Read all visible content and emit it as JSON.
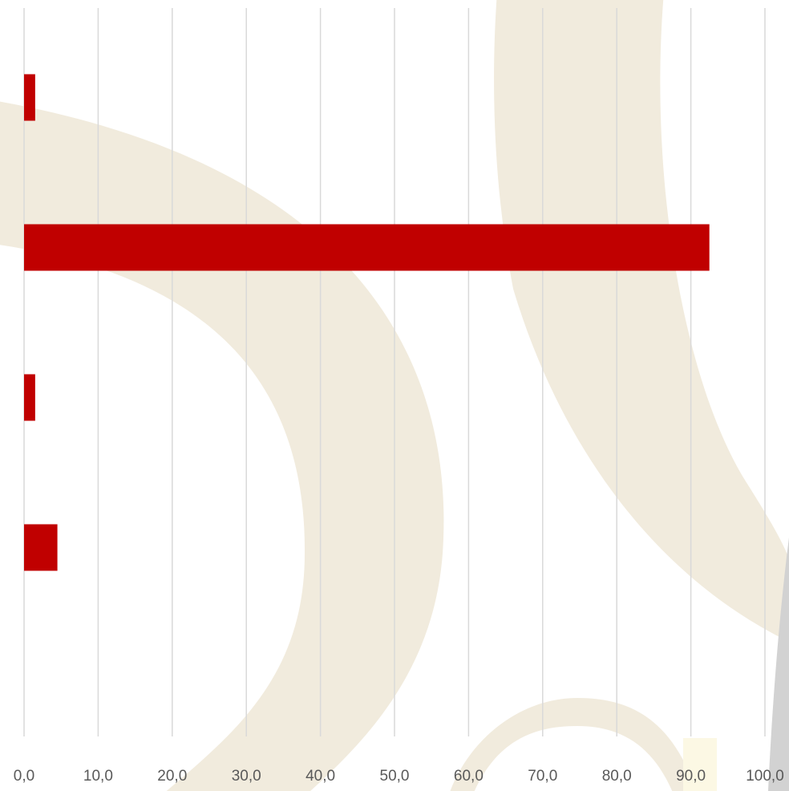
{
  "chart_data": {
    "type": "bar",
    "orientation": "horizontal",
    "categories": [
      "",
      "",
      "",
      "",
      ""
    ],
    "values": [
      1.5,
      92.5,
      1.5,
      4.5,
      0
    ],
    "xlim": [
      0,
      100
    ],
    "xticks": [
      0,
      10,
      20,
      30,
      40,
      50,
      60,
      70,
      80,
      90,
      100
    ],
    "xtick_labels": [
      "0,0",
      "10,0",
      "20,0",
      "30,0",
      "40,0",
      "50,0",
      "60,0",
      "70,0",
      "80,0",
      "90,0",
      "100,0"
    ],
    "grid": true,
    "legend": "none",
    "title": "",
    "xlabel": "",
    "ylabel": ""
  },
  "colors": {
    "bar": "#c00000",
    "grid": "#d9d9d9",
    "tick_label": "#595959",
    "watermark": "#f1ebdd",
    "watermark_accent": "#fcf8e4",
    "shadow": "#d2d2d2"
  }
}
